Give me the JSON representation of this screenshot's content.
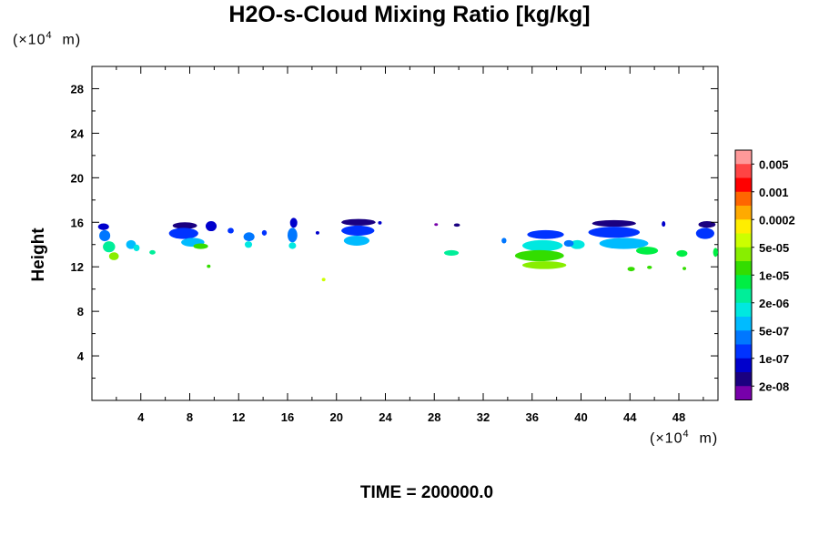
{
  "title": "H2O-s-Cloud Mixing Ratio [kg/kg]",
  "units": {
    "y_prefix": "(×10",
    "y_exp": "4",
    "y_suffix": "  m)",
    "x_prefix": "(×10",
    "x_exp": "4",
    "x_suffix": "  m)"
  },
  "ylabel": "Height",
  "time_label": "TIME = 200000.0",
  "chart_data": {
    "type": "heatmap",
    "title": "H2O-s-Cloud Mixing Ratio [kg/kg]",
    "xlabel": "",
    "ylabel": "Height",
    "xlim": [
      0,
      51.2
    ],
    "ylim": [
      0,
      30
    ],
    "x_ticks": [
      4,
      8,
      12,
      16,
      20,
      24,
      28,
      32,
      36,
      40,
      44,
      48
    ],
    "y_ticks": [
      4,
      8,
      12,
      16,
      20,
      24,
      28
    ],
    "colorbar": {
      "labels": [
        "0.005",
        "0.001",
        "0.0002",
        "5e-05",
        "1e-05",
        "2e-06",
        "5e-07",
        "1e-07",
        "2e-08"
      ],
      "colors": [
        "#ff9999",
        "#ff4444",
        "#ff0000",
        "#ff6600",
        "#ffaa00",
        "#ffee00",
        "#ccff00",
        "#88ee00",
        "#33dd00",
        "#00ee44",
        "#00ee99",
        "#00e8e0",
        "#00bbff",
        "#0077ff",
        "#0033ff",
        "#0000cc",
        "#1a0080",
        "#7700aa"
      ]
    },
    "cloud_patches": [
      {
        "x": 0.5,
        "y": 15.3,
        "w": 0.9,
        "h": 0.6,
        "c": "#0000cc"
      },
      {
        "x": 0.6,
        "y": 14.3,
        "w": 0.9,
        "h": 1.0,
        "c": "#0077ff"
      },
      {
        "x": 0.9,
        "y": 13.3,
        "w": 1.0,
        "h": 1.0,
        "c": "#00ee99"
      },
      {
        "x": 1.4,
        "y": 12.6,
        "w": 0.8,
        "h": 0.7,
        "c": "#88ee00"
      },
      {
        "x": 2.8,
        "y": 13.6,
        "w": 0.8,
        "h": 0.8,
        "c": "#00bbff"
      },
      {
        "x": 3.4,
        "y": 13.4,
        "w": 0.5,
        "h": 0.6,
        "c": "#00e8e0"
      },
      {
        "x": 4.7,
        "y": 13.1,
        "w": 0.5,
        "h": 0.4,
        "c": "#00ee99"
      },
      {
        "x": 6.6,
        "y": 15.4,
        "w": 2.0,
        "h": 0.6,
        "c": "#1a0080"
      },
      {
        "x": 6.3,
        "y": 14.5,
        "w": 2.4,
        "h": 1.0,
        "c": "#0033ff"
      },
      {
        "x": 7.3,
        "y": 13.8,
        "w": 1.9,
        "h": 0.8,
        "c": "#00bbff"
      },
      {
        "x": 8.3,
        "y": 13.6,
        "w": 1.2,
        "h": 0.5,
        "c": "#33dd00"
      },
      {
        "x": 9.3,
        "y": 15.2,
        "w": 0.9,
        "h": 0.9,
        "c": "#0000cc"
      },
      {
        "x": 9.4,
        "y": 11.9,
        "w": 0.3,
        "h": 0.3,
        "c": "#33dd00"
      },
      {
        "x": 11.1,
        "y": 15.0,
        "w": 0.5,
        "h": 0.5,
        "c": "#0033ff"
      },
      {
        "x": 12.4,
        "y": 14.3,
        "w": 0.9,
        "h": 0.8,
        "c": "#0077ff"
      },
      {
        "x": 12.5,
        "y": 13.7,
        "w": 0.6,
        "h": 0.6,
        "c": "#00e8e0"
      },
      {
        "x": 13.9,
        "y": 14.8,
        "w": 0.4,
        "h": 0.5,
        "c": "#0033ff"
      },
      {
        "x": 16.2,
        "y": 15.5,
        "w": 0.6,
        "h": 0.9,
        "c": "#0000cc"
      },
      {
        "x": 16.0,
        "y": 14.2,
        "w": 0.8,
        "h": 1.3,
        "c": "#0077ff"
      },
      {
        "x": 16.1,
        "y": 13.6,
        "w": 0.6,
        "h": 0.6,
        "c": "#00e8e0"
      },
      {
        "x": 18.3,
        "y": 14.9,
        "w": 0.3,
        "h": 0.3,
        "c": "#0000cc"
      },
      {
        "x": 18.8,
        "y": 10.7,
        "w": 0.3,
        "h": 0.3,
        "c": "#ccff00"
      },
      {
        "x": 20.4,
        "y": 15.7,
        "w": 2.8,
        "h": 0.6,
        "c": "#1a0080"
      },
      {
        "x": 20.4,
        "y": 14.8,
        "w": 2.7,
        "h": 0.9,
        "c": "#0033ff"
      },
      {
        "x": 20.6,
        "y": 13.9,
        "w": 2.1,
        "h": 0.9,
        "c": "#00bbff"
      },
      {
        "x": 23.4,
        "y": 15.8,
        "w": 0.3,
        "h": 0.3,
        "c": "#0000cc"
      },
      {
        "x": 28.0,
        "y": 15.7,
        "w": 0.3,
        "h": 0.2,
        "c": "#7700aa"
      },
      {
        "x": 29.6,
        "y": 15.6,
        "w": 0.5,
        "h": 0.3,
        "c": "#1a0080"
      },
      {
        "x": 28.8,
        "y": 13.0,
        "w": 1.2,
        "h": 0.5,
        "c": "#00ee99"
      },
      {
        "x": 33.5,
        "y": 14.1,
        "w": 0.4,
        "h": 0.5,
        "c": "#0077ff"
      },
      {
        "x": 35.6,
        "y": 14.5,
        "w": 3.0,
        "h": 0.8,
        "c": "#0033ff"
      },
      {
        "x": 35.2,
        "y": 13.4,
        "w": 3.3,
        "h": 1.0,
        "c": "#00e8e0"
      },
      {
        "x": 34.6,
        "y": 12.5,
        "w": 4.0,
        "h": 1.0,
        "c": "#33dd00"
      },
      {
        "x": 35.2,
        "y": 11.8,
        "w": 3.6,
        "h": 0.7,
        "c": "#88ee00"
      },
      {
        "x": 40.9,
        "y": 15.6,
        "w": 3.6,
        "h": 0.6,
        "c": "#1a0080"
      },
      {
        "x": 40.6,
        "y": 14.6,
        "w": 4.2,
        "h": 1.0,
        "c": "#0033ff"
      },
      {
        "x": 41.5,
        "y": 13.6,
        "w": 4.0,
        "h": 1.0,
        "c": "#00bbff"
      },
      {
        "x": 44.5,
        "y": 13.1,
        "w": 1.8,
        "h": 0.7,
        "c": "#00ee44"
      },
      {
        "x": 39.1,
        "y": 13.6,
        "w": 1.2,
        "h": 0.8,
        "c": "#00e8e0"
      },
      {
        "x": 38.6,
        "y": 13.8,
        "w": 0.8,
        "h": 0.6,
        "c": "#0077ff"
      },
      {
        "x": 43.8,
        "y": 11.6,
        "w": 0.6,
        "h": 0.4,
        "c": "#33dd00"
      },
      {
        "x": 45.4,
        "y": 11.8,
        "w": 0.4,
        "h": 0.3,
        "c": "#33dd00"
      },
      {
        "x": 46.6,
        "y": 15.6,
        "w": 0.3,
        "h": 0.5,
        "c": "#0000cc"
      },
      {
        "x": 47.8,
        "y": 12.9,
        "w": 0.9,
        "h": 0.6,
        "c": "#00ee44"
      },
      {
        "x": 48.3,
        "y": 11.7,
        "w": 0.3,
        "h": 0.3,
        "c": "#33dd00"
      },
      {
        "x": 49.6,
        "y": 15.5,
        "w": 1.4,
        "h": 0.6,
        "c": "#1a0080"
      },
      {
        "x": 49.4,
        "y": 14.5,
        "w": 1.5,
        "h": 1.0,
        "c": "#0033ff"
      },
      {
        "x": 50.8,
        "y": 12.9,
        "w": 0.4,
        "h": 0.8,
        "c": "#00ee44"
      }
    ]
  }
}
